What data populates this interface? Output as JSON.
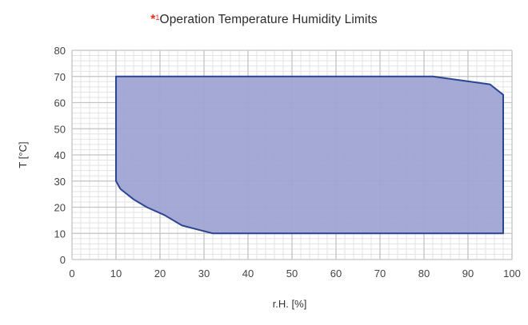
{
  "title": {
    "marker": "*",
    "superscript": "1",
    "text": "Operation Temperature Humidity Limits"
  },
  "chart_data": {
    "type": "area",
    "title": "Operation Temperature Humidity Limits",
    "xlabel": "r.H. [%]",
    "ylabel": "T [°C]",
    "xlim": [
      0,
      100
    ],
    "ylim": [
      0,
      80
    ],
    "x_ticks": [
      0,
      10,
      20,
      30,
      40,
      50,
      60,
      70,
      80,
      90,
      100
    ],
    "y_ticks": [
      0,
      10,
      20,
      30,
      40,
      50,
      60,
      70,
      80
    ],
    "minor_grid_step_x": 2,
    "minor_grid_step_y": 2,
    "grid": true,
    "fill_color": "#a0a4d3",
    "line_color": "#2b4592",
    "polygon": [
      {
        "x": 10,
        "y": 70
      },
      {
        "x": 82,
        "y": 70
      },
      {
        "x": 95,
        "y": 67
      },
      {
        "x": 98,
        "y": 63
      },
      {
        "x": 98,
        "y": 10
      },
      {
        "x": 32,
        "y": 10
      },
      {
        "x": 25,
        "y": 13
      },
      {
        "x": 21,
        "y": 17
      },
      {
        "x": 17,
        "y": 20
      },
      {
        "x": 14,
        "y": 23
      },
      {
        "x": 11,
        "y": 27
      },
      {
        "x": 10,
        "y": 30
      }
    ]
  }
}
